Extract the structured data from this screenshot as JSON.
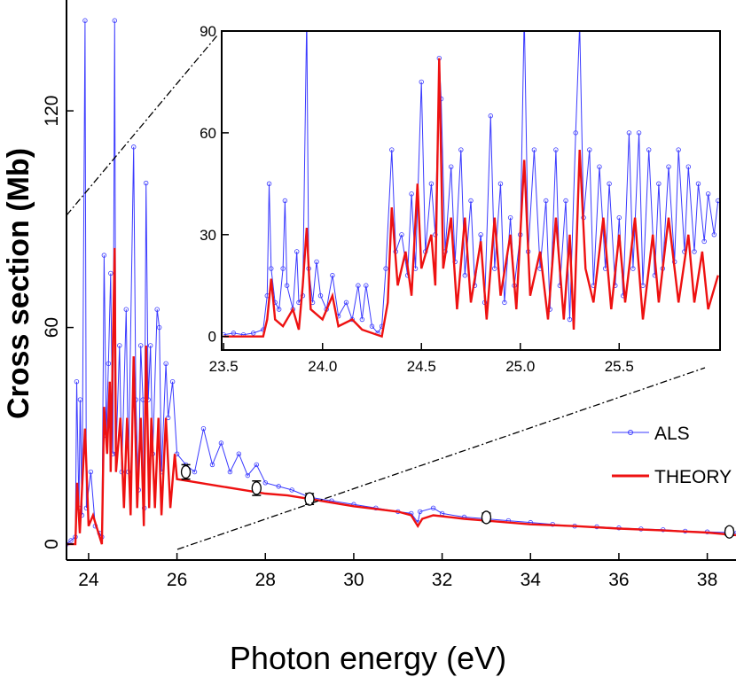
{
  "chart_data": [
    {
      "type": "line",
      "x_label": "Photon energy (eV)",
      "y_label": "Cross section (Mb)",
      "xlim": [
        23.5,
        38.65
      ],
      "ylim": [
        -4.4,
        150.7
      ],
      "xticks": [
        24,
        26,
        28,
        30,
        32,
        34,
        36,
        38
      ],
      "yticks": [
        0,
        60,
        120
      ],
      "legend": "right",
      "series": [
        {
          "name": "ALS",
          "color": "#3a3aff",
          "marker": "circle",
          "x": [
            23.5,
            23.6,
            23.7,
            23.73,
            23.78,
            23.81,
            23.85,
            23.92,
            23.95,
            24.05,
            24.15,
            24.25,
            24.3,
            24.35,
            24.4,
            24.45,
            24.5,
            24.55,
            24.59,
            24.62,
            24.7,
            24.75,
            24.85,
            24.9,
            25.02,
            25.07,
            25.13,
            25.18,
            25.23,
            25.26,
            25.3,
            25.35,
            25.4,
            25.45,
            25.55,
            25.6,
            25.65,
            25.75,
            25.8,
            25.9,
            26.0,
            26.2,
            26.4,
            26.6,
            26.8,
            27.0,
            27.2,
            27.4,
            27.6,
            27.8,
            28.0,
            28.3,
            28.6,
            29.0,
            29.5,
            30.0,
            30.5,
            31.0,
            31.3,
            31.45,
            31.5,
            31.8,
            32.0,
            32.5,
            33.0,
            33.5,
            34.0,
            34.5,
            35.0,
            35.5,
            36.0,
            36.5,
            37.0,
            37.5,
            38.0,
            38.5,
            38.65
          ],
          "values": [
            0,
            1,
            2,
            45,
            10,
            40,
            8,
            145,
            10,
            20,
            5,
            3,
            2,
            80,
            30,
            50,
            75,
            25,
            145,
            25,
            55,
            20,
            65,
            20,
            110,
            40,
            15,
            55,
            40,
            10,
            100,
            40,
            55,
            25,
            65,
            60,
            20,
            50,
            35,
            45,
            25,
            22,
            20,
            32,
            22,
            28,
            20,
            25,
            19,
            22,
            17,
            16,
            15,
            13,
            12,
            11,
            10,
            9,
            8.5,
            6,
            9,
            10,
            8.5,
            7.5,
            7,
            6.5,
            6,
            5.5,
            5,
            4.8,
            4.5,
            4.2,
            4,
            3.6,
            3.4,
            3.2,
            3
          ]
        },
        {
          "name": "THEORY",
          "color": "#ee1111",
          "x": [
            23.5,
            23.7,
            23.74,
            23.8,
            23.92,
            24.0,
            24.1,
            24.3,
            24.35,
            24.42,
            24.48,
            24.5,
            24.59,
            24.62,
            24.72,
            24.8,
            24.87,
            24.95,
            25.02,
            25.1,
            25.18,
            25.25,
            25.3,
            25.37,
            25.42,
            25.5,
            25.58,
            25.65,
            25.75,
            25.85,
            25.95,
            26.0,
            26.5,
            27.0,
            27.5,
            28.0,
            28.5,
            29.0,
            30.0,
            31.0,
            31.3,
            31.45,
            31.55,
            31.8,
            32.5,
            33.0,
            34.0,
            35.0,
            36.0,
            37.0,
            38.0,
            38.65
          ],
          "values": [
            0,
            0,
            17,
            3,
            32,
            5,
            8,
            0,
            38,
            25,
            45,
            20,
            82,
            20,
            35,
            10,
            35,
            8,
            52,
            10,
            35,
            5,
            55,
            10,
            35,
            10,
            35,
            8,
            35,
            10,
            25,
            18,
            17,
            16,
            15,
            14,
            13.5,
            12.5,
            10.5,
            9,
            8,
            5,
            7,
            8,
            7,
            6.5,
            5.5,
            5,
            4.3,
            3.8,
            3.2,
            2.5
          ]
        }
      ],
      "points": {
        "x": [
          26.2,
          27.8,
          29,
          33,
          38.5
        ],
        "values": [
          20,
          15.5,
          12.5,
          7.4,
          3.4
        ],
        "errors": [
          2,
          2,
          1.5,
          1.2,
          1
        ],
        "color": "#000000"
      }
    },
    {
      "type": "line",
      "xlim": [
        23.49,
        26.01
      ],
      "ylim": [
        -4,
        90
      ],
      "xticks": [
        23.5,
        {
          "value": 24,
          "label": "24.0"
        },
        24.5,
        {
          "value": 25,
          "label": "25.0"
        },
        25.5
      ],
      "yticks": [
        0,
        30,
        60,
        90
      ],
      "series": [
        {
          "color": "#3a3aff",
          "marker": "circle",
          "x": [
            23.5,
            23.55,
            23.6,
            23.65,
            23.7,
            23.72,
            23.73,
            23.74,
            23.76,
            23.78,
            23.8,
            23.81,
            23.82,
            23.85,
            23.87,
            23.88,
            23.9,
            23.92,
            23.93,
            23.95,
            23.97,
            23.99,
            24.02,
            24.05,
            24.08,
            24.12,
            24.15,
            24.18,
            24.2,
            24.22,
            24.25,
            24.28,
            24.3,
            24.32,
            24.35,
            24.37,
            24.4,
            24.43,
            24.45,
            24.47,
            24.5,
            24.52,
            24.55,
            24.57,
            24.59,
            24.6,
            24.62,
            24.65,
            24.67,
            24.7,
            24.72,
            24.75,
            24.77,
            24.8,
            24.82,
            24.85,
            24.87,
            24.9,
            24.92,
            24.95,
            24.97,
            25.0,
            25.02,
            25.04,
            25.07,
            25.1,
            25.13,
            25.15,
            25.18,
            25.2,
            25.23,
            25.25,
            25.28,
            25.3,
            25.32,
            25.35,
            25.37,
            25.4,
            25.43,
            25.45,
            25.48,
            25.5,
            25.52,
            25.55,
            25.57,
            25.6,
            25.62,
            25.65,
            25.68,
            25.7,
            25.72,
            25.75,
            25.78,
            25.8,
            25.83,
            25.85,
            25.88,
            25.9,
            25.93,
            25.95,
            25.98,
            26.0
          ],
          "values": [
            0.5,
            1,
            0.5,
            1,
            2,
            12,
            45,
            20,
            10,
            8,
            20,
            40,
            15,
            8,
            25,
            10,
            12,
            95,
            20,
            10,
            22,
            12,
            8,
            18,
            6,
            10,
            5,
            15,
            5,
            15,
            3,
            1,
            3,
            20,
            55,
            25,
            30,
            18,
            42,
            20,
            75,
            25,
            45,
            30,
            82,
            70,
            25,
            50,
            22,
            55,
            18,
            40,
            15,
            30,
            10,
            65,
            20,
            45,
            10,
            35,
            15,
            30,
            95,
            25,
            55,
            20,
            40,
            8,
            55,
            15,
            40,
            5,
            60,
            92,
            35,
            55,
            15,
            50,
            20,
            45,
            15,
            35,
            12,
            60,
            20,
            60,
            15,
            55,
            18,
            45,
            20,
            50,
            22,
            55,
            25,
            50,
            25,
            45,
            28,
            42,
            30,
            40
          ]
        },
        {
          "color": "#ee1111",
          "x": [
            23.5,
            23.7,
            23.72,
            23.74,
            23.76,
            23.8,
            23.85,
            23.88,
            23.9,
            23.92,
            23.94,
            24.0,
            24.05,
            24.08,
            24.15,
            24.2,
            24.3,
            24.33,
            24.35,
            24.38,
            24.42,
            24.45,
            24.48,
            24.5,
            24.55,
            24.57,
            24.59,
            24.61,
            24.65,
            24.68,
            24.72,
            24.75,
            24.8,
            24.83,
            24.87,
            24.9,
            24.95,
            24.98,
            25.02,
            25.05,
            25.1,
            25.14,
            25.18,
            25.22,
            25.25,
            25.27,
            25.3,
            25.33,
            25.37,
            25.42,
            25.46,
            25.5,
            25.53,
            25.58,
            25.62,
            25.67,
            25.7,
            25.75,
            25.8,
            25.85,
            25.88,
            25.92,
            25.95,
            26.0
          ],
          "values": [
            0,
            0,
            5,
            17,
            5,
            3,
            8,
            2,
            15,
            32,
            8,
            5,
            12,
            3,
            5,
            2,
            0,
            10,
            38,
            15,
            25,
            12,
            45,
            20,
            30,
            15,
            82,
            20,
            35,
            8,
            35,
            10,
            28,
            5,
            35,
            12,
            30,
            8,
            52,
            12,
            25,
            5,
            35,
            5,
            30,
            2,
            55,
            20,
            10,
            35,
            8,
            30,
            10,
            35,
            5,
            30,
            10,
            35,
            10,
            30,
            10,
            25,
            8,
            18
          ]
        }
      ]
    }
  ]
}
